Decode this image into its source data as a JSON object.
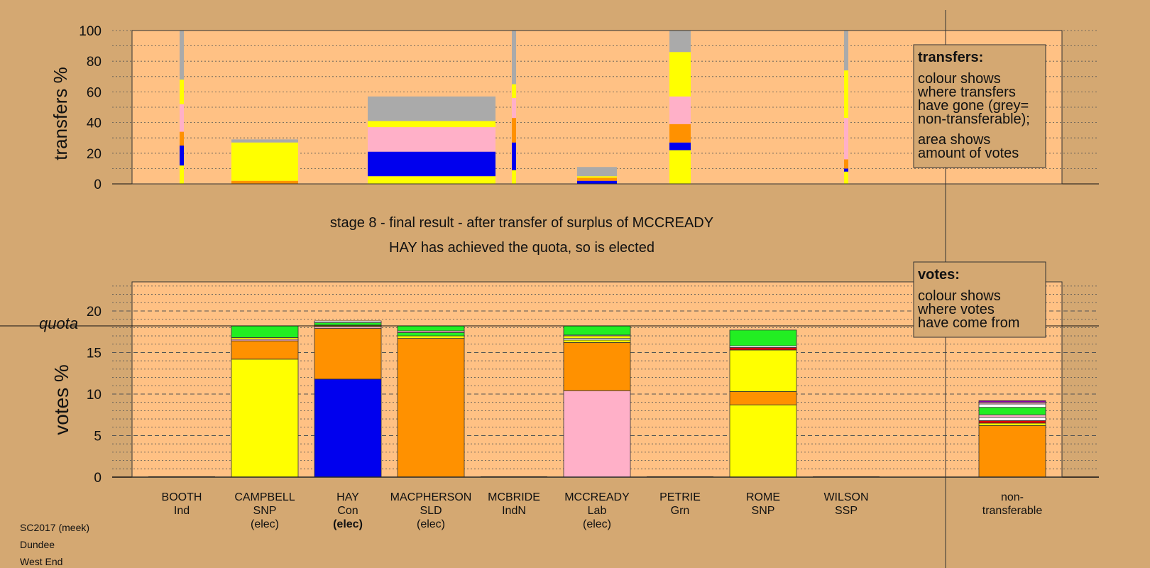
{
  "footer": [
    "SC2017 (meek)",
    "Dundee",
    "West End"
  ],
  "stage_title": "stage 8 - final result - after transfer of surplus of MCCREADY",
  "stage_note": "HAY has achieved the quota, so is elected",
  "quota_label": "quota",
  "colors": {
    "yellow": "#ffff00",
    "orange": "#ff9100",
    "blue": "#0000ee",
    "pink": "#ffb0c8",
    "grey": "#aaaaaa",
    "green": "#22ee22",
    "red": "#dd0000",
    "white": "#ffffff",
    "purple": "#8800aa"
  },
  "candidates": [
    {
      "name": "BOOTH",
      "party": "Ind",
      "status": "",
      "status_bold": false
    },
    {
      "name": "CAMPBELL",
      "party": "SNP",
      "status": "(elec)",
      "status_bold": false
    },
    {
      "name": "HAY",
      "party": "Con",
      "status": "(elec)",
      "status_bold": true
    },
    {
      "name": "MACPHERSON",
      "party": "SLD",
      "status": "(elec)",
      "status_bold": false
    },
    {
      "name": "MCBRIDE",
      "party": "IndN",
      "status": "",
      "status_bold": false
    },
    {
      "name": "MCCREADY",
      "party": "Lab",
      "status": "(elec)",
      "status_bold": false
    },
    {
      "name": "PETRIE",
      "party": "Grn",
      "status": "",
      "status_bold": false
    },
    {
      "name": "ROME",
      "party": "SNP",
      "status": "",
      "status_bold": false
    },
    {
      "name": "WILSON",
      "party": "SSP",
      "status": "",
      "status_bold": false
    },
    {
      "name": "non-transferable",
      "party": "",
      "status": "",
      "status_bold": false,
      "lines": [
        "non-",
        "transferable"
      ]
    }
  ],
  "legend_transfers": {
    "title": "transfers:",
    "lines": [
      "colour shows",
      "where transfers",
      "have gone (grey=",
      "non-transferable);",
      "",
      "area shows",
      "amount of votes"
    ]
  },
  "legend_votes": {
    "title": "votes:",
    "lines": [
      "colour shows",
      "where votes",
      "have come from"
    ]
  },
  "chart_data": [
    {
      "type": "bar",
      "ylabel": "transfers %",
      "ylim": [
        0,
        100
      ],
      "yticks": [
        0,
        20,
        40,
        60,
        80,
        100
      ],
      "grid": true,
      "columns": [
        {
          "candidate": "BOOTH",
          "width": "narrow",
          "segments": [
            {
              "color": "yellow",
              "from": 0,
              "to": 12
            },
            {
              "color": "blue",
              "from": 12,
              "to": 25
            },
            {
              "color": "orange",
              "from": 25,
              "to": 34
            },
            {
              "color": "pink",
              "from": 34,
              "to": 52
            },
            {
              "color": "yellow",
              "from": 52,
              "to": 68
            },
            {
              "color": "grey",
              "from": 68,
              "to": 100
            }
          ]
        },
        {
          "candidate": "CAMPBELL",
          "width": "wide",
          "segments": [
            {
              "color": "orange",
              "from": 0,
              "to": 2
            },
            {
              "color": "yellow",
              "from": 2,
              "to": 27
            },
            {
              "color": "grey",
              "from": 27,
              "to": 29
            }
          ]
        },
        {
          "candidate": "MACPHERSON",
          "width": "wide",
          "segments": [
            {
              "color": "yellow",
              "from": 0,
              "to": 5
            },
            {
              "color": "blue",
              "from": 5,
              "to": 21
            },
            {
              "color": "pink",
              "from": 21,
              "to": 37
            },
            {
              "color": "yellow",
              "from": 37,
              "to": 41
            },
            {
              "color": "grey",
              "from": 41,
              "to": 57
            }
          ]
        },
        {
          "candidate": "MCBRIDE",
          "width": "narrow",
          "segments": [
            {
              "color": "yellow",
              "from": 0,
              "to": 9
            },
            {
              "color": "blue",
              "from": 9,
              "to": 27
            },
            {
              "color": "orange",
              "from": 27,
              "to": 43
            },
            {
              "color": "pink",
              "from": 43,
              "to": 56
            },
            {
              "color": "yellow",
              "from": 56,
              "to": 65
            },
            {
              "color": "grey",
              "from": 65,
              "to": 100
            }
          ]
        },
        {
          "candidate": "MCCREADY",
          "width": "wide",
          "segments": [
            {
              "color": "blue",
              "from": 0,
              "to": 2
            },
            {
              "color": "orange",
              "from": 2,
              "to": 4
            },
            {
              "color": "yellow",
              "from": 4,
              "to": 5
            },
            {
              "color": "grey",
              "from": 5,
              "to": 11
            }
          ]
        },
        {
          "candidate": "PETRIE",
          "width": "wide",
          "segments": [
            {
              "color": "yellow",
              "from": 0,
              "to": 22
            },
            {
              "color": "blue",
              "from": 22,
              "to": 27
            },
            {
              "color": "orange",
              "from": 27,
              "to": 39
            },
            {
              "color": "pink",
              "from": 39,
              "to": 57
            },
            {
              "color": "yellow",
              "from": 57,
              "to": 86
            },
            {
              "color": "grey",
              "from": 86,
              "to": 100
            }
          ]
        },
        {
          "candidate": "WILSON",
          "width": "narrow",
          "segments": [
            {
              "color": "yellow",
              "from": 0,
              "to": 8
            },
            {
              "color": "blue",
              "from": 8,
              "to": 10
            },
            {
              "color": "orange",
              "from": 10,
              "to": 16
            },
            {
              "color": "pink",
              "from": 16,
              "to": 43
            },
            {
              "color": "yellow",
              "from": 43,
              "to": 74
            },
            {
              "color": "grey",
              "from": 74,
              "to": 100
            }
          ]
        }
      ]
    },
    {
      "type": "bar",
      "ylabel": "votes %",
      "ylim": [
        0,
        23.5
      ],
      "yticks": [
        0,
        5,
        10,
        15,
        20
      ],
      "quota": 18.2,
      "grid": true,
      "bars": [
        {
          "candidate": "BOOTH",
          "segments": []
        },
        {
          "candidate": "CAMPBELL",
          "segments": [
            {
              "color": "yellow",
              "from": 0,
              "to": 14.2
            },
            {
              "color": "orange",
              "from": 14.2,
              "to": 16.4
            },
            {
              "color": "pink",
              "from": 16.4,
              "to": 16.6
            },
            {
              "color": "yellow",
              "from": 16.6,
              "to": 16.8
            },
            {
              "color": "green",
              "from": 16.8,
              "to": 18.2
            }
          ]
        },
        {
          "candidate": "HAY",
          "segments": [
            {
              "color": "blue",
              "from": 0,
              "to": 11.8
            },
            {
              "color": "orange",
              "from": 11.8,
              "to": 17.9
            },
            {
              "color": "pink",
              "from": 17.9,
              "to": 18.1
            },
            {
              "color": "yellow",
              "from": 18.1,
              "to": 18.3
            },
            {
              "color": "green",
              "from": 18.3,
              "to": 18.6
            },
            {
              "color": "white",
              "from": 18.6,
              "to": 18.8
            }
          ]
        },
        {
          "candidate": "MACPHERSON",
          "segments": [
            {
              "color": "orange",
              "from": 0,
              "to": 16.7
            },
            {
              "color": "yellow",
              "from": 16.7,
              "to": 17.0
            },
            {
              "color": "green",
              "from": 17.0,
              "to": 17.4
            },
            {
              "color": "pink",
              "from": 17.4,
              "to": 17.6
            },
            {
              "color": "green",
              "from": 17.6,
              "to": 18.2
            }
          ]
        },
        {
          "candidate": "MCBRIDE",
          "segments": []
        },
        {
          "candidate": "MCCREADY",
          "segments": [
            {
              "color": "pink",
              "from": 0,
              "to": 10.4
            },
            {
              "color": "orange",
              "from": 10.4,
              "to": 16.2
            },
            {
              "color": "yellow",
              "from": 16.2,
              "to": 16.5
            },
            {
              "color": "white",
              "from": 16.5,
              "to": 16.7
            },
            {
              "color": "yellow",
              "from": 16.7,
              "to": 17.0
            },
            {
              "color": "white",
              "from": 17.0,
              "to": 17.1
            },
            {
              "color": "green",
              "from": 17.1,
              "to": 18.2
            }
          ]
        },
        {
          "candidate": "PETRIE",
          "segments": []
        },
        {
          "candidate": "ROME",
          "segments": [
            {
              "color": "yellow",
              "from": 0,
              "to": 8.7
            },
            {
              "color": "orange",
              "from": 8.7,
              "to": 10.3
            },
            {
              "color": "yellow",
              "from": 10.3,
              "to": 15.3
            },
            {
              "color": "red",
              "from": 15.3,
              "to": 15.6
            },
            {
              "color": "white",
              "from": 15.6,
              "to": 15.8
            },
            {
              "color": "green",
              "from": 15.8,
              "to": 17.7
            }
          ]
        },
        {
          "candidate": "WILSON",
          "segments": []
        },
        {
          "candidate": "non-transferable",
          "segments": [
            {
              "color": "orange",
              "from": 0,
              "to": 6.2
            },
            {
              "color": "yellow",
              "from": 6.2,
              "to": 6.5
            },
            {
              "color": "red",
              "from": 6.5,
              "to": 6.8
            },
            {
              "color": "white",
              "from": 6.8,
              "to": 7.2
            },
            {
              "color": "pink",
              "from": 7.2,
              "to": 7.5
            },
            {
              "color": "green",
              "from": 7.5,
              "to": 8.4
            },
            {
              "color": "white",
              "from": 8.4,
              "to": 8.8
            },
            {
              "color": "pink",
              "from": 8.8,
              "to": 9.0
            },
            {
              "color": "purple",
              "from": 9.0,
              "to": 9.2
            }
          ]
        }
      ]
    }
  ]
}
